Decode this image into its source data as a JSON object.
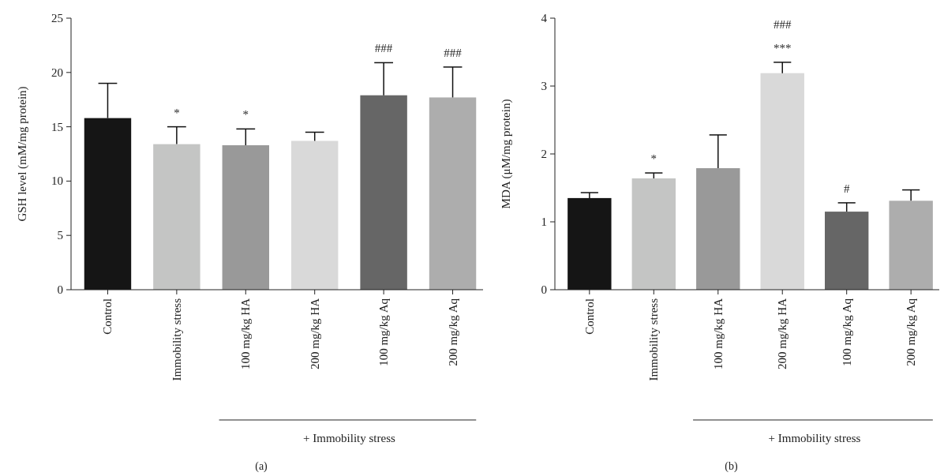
{
  "chart_data": [
    {
      "type": "bar",
      "ylabel": "GSH level (mM/mg protein)",
      "categories": [
        "Control",
        "Immobility stress",
        "100 mg/kg HA",
        "200 mg/kg HA",
        "100 mg/kg Aq",
        "200 mg/kg Aq"
      ],
      "values": [
        15.8,
        13.4,
        13.3,
        13.7,
        17.9,
        17.7
      ],
      "errors": [
        3.2,
        1.6,
        1.5,
        0.8,
        3.0,
        2.8
      ],
      "colors": [
        "#151515",
        "#c4c5c4",
        "#999999",
        "#d9d9d9",
        "#666666",
        "#adadad"
      ],
      "ylim": [
        0,
        25
      ],
      "yticks": [
        0,
        5,
        10,
        15,
        20,
        25
      ],
      "grid": false,
      "annotations": [
        "+ Immobility stress",
        "(a)",
        "*",
        "*",
        "###",
        "###"
      ]
    },
    {
      "type": "bar",
      "ylabel": "MDA (μM/mg protein)",
      "categories": [
        "Control",
        "Immobility stress",
        "100 mg/kg HA",
        "200 mg/kg HA",
        "100 mg/kg Aq",
        "200 mg/kg Aq"
      ],
      "values": [
        1.35,
        1.64,
        1.79,
        3.19,
        1.15,
        1.31
      ],
      "errors": [
        0.08,
        0.08,
        0.49,
        0.16,
        0.13,
        0.16
      ],
      "colors": [
        "#151515",
        "#c4c5c4",
        "#999999",
        "#d9d9d9",
        "#666666",
        "#adadad"
      ],
      "ylim": [
        0,
        4
      ],
      "yticks": [
        0,
        1,
        2,
        3,
        4
      ],
      "grid": false,
      "annotations": [
        "+ Immobility stress",
        "(b)",
        "*",
        "***",
        "###",
        "#"
      ]
    }
  ]
}
